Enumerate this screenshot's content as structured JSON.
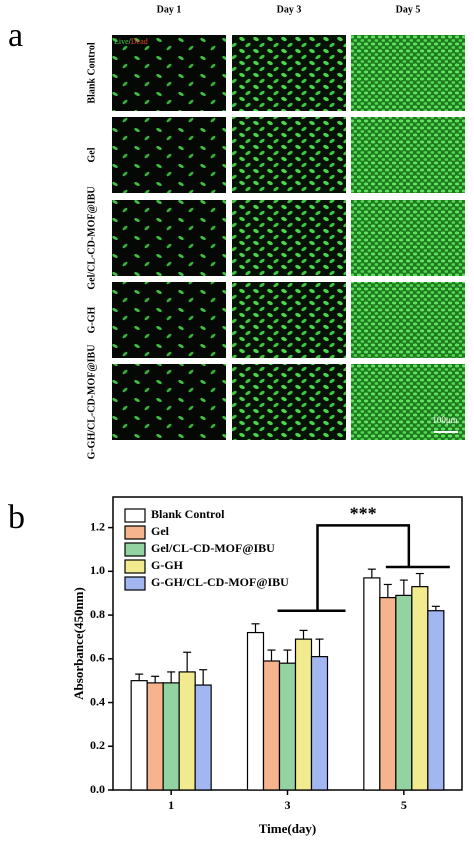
{
  "panel_a": {
    "label": "a",
    "columns": [
      "Day 1",
      "Day 3",
      "Day 5"
    ],
    "rows": [
      "Blank Control",
      "Gel",
      "Gel/CL-CD-MOF@IBU",
      "G-GH",
      "G-GH/CL-CD-MOF@IBU"
    ],
    "stain": {
      "live": "Live",
      "sep": "/",
      "dead": "Dead"
    },
    "scale_bar": "100μm"
  },
  "chart_data": {
    "type": "bar",
    "panel_label": "b",
    "x_label": "Time(day)",
    "y_label": "Absorbance(450nm)",
    "categories": [
      "1",
      "3",
      "5"
    ],
    "series": [
      {
        "name": "Blank Control",
        "color": "#ffffff",
        "values": [
          0.5,
          0.72,
          0.97
        ],
        "errors": [
          0.03,
          0.04,
          0.04
        ]
      },
      {
        "name": "Gel",
        "color": "#f5b48e",
        "values": [
          0.49,
          0.59,
          0.88
        ],
        "errors": [
          0.03,
          0.05,
          0.06
        ]
      },
      {
        "name": "Gel/CL-CD-MOF@IBU",
        "color": "#93d3a2",
        "values": [
          0.49,
          0.58,
          0.89
        ],
        "errors": [
          0.05,
          0.06,
          0.07
        ]
      },
      {
        "name": "G-GH",
        "color": "#f2ea8e",
        "values": [
          0.54,
          0.69,
          0.93
        ],
        "errors": [
          0.09,
          0.04,
          0.06
        ]
      },
      {
        "name": "G-GH/CL-CD-MOF@IBU",
        "color": "#a2b6f2",
        "values": [
          0.48,
          0.61,
          0.82
        ],
        "errors": [
          0.07,
          0.08,
          0.02
        ]
      }
    ],
    "ylim": [
      0,
      1.34
    ],
    "yticks": [
      {
        "value": 0,
        "label": "0.0"
      },
      0.2,
      0.4,
      0.6,
      0.8,
      {
        "value": 1,
        "label": "1.0"
      },
      1.2
    ],
    "annotation": "***",
    "legend": "upper left"
  }
}
